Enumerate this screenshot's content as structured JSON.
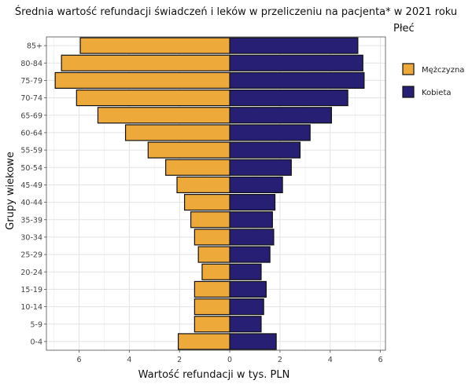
{
  "chart_data": {
    "type": "bar",
    "orientation": "horizontal",
    "layout": "population-pyramid",
    "title": "Średnia wartość refundacji świadczeń i leków w przeliczeniu na pacjenta* w 2021 roku",
    "xlabel": "Wartość refundacji w tys. PLN",
    "ylabel": "Grupy wiekowe",
    "legend_title": "Płeć",
    "legend_position": "right",
    "grid": true,
    "xlim": [
      -7.3,
      6.2
    ],
    "x_tick_values": [
      -6,
      -4,
      -2,
      0,
      2,
      4,
      6
    ],
    "x_tick_labels": [
      "6",
      "4",
      "2",
      "0",
      "2",
      "4",
      "6"
    ],
    "categories": [
      "0-4",
      "5-9",
      "10-14",
      "15-19",
      "20-24",
      "25-29",
      "30-34",
      "35-39",
      "40-44",
      "45-49",
      "50-54",
      "55-59",
      "60-64",
      "65-69",
      "70-74",
      "75-79",
      "80-84",
      "85+"
    ],
    "series": [
      {
        "name": "Mężczyzna",
        "color": "#EEA93B",
        "side": "left",
        "values": [
          2.05,
          1.4,
          1.4,
          1.4,
          1.1,
          1.25,
          1.4,
          1.55,
          1.8,
          2.1,
          2.55,
          3.25,
          4.15,
          5.25,
          6.1,
          6.95,
          6.7,
          5.95
        ]
      },
      {
        "name": "Kobieta",
        "color": "#261F73",
        "side": "right",
        "values": [
          1.85,
          1.25,
          1.35,
          1.45,
          1.25,
          1.6,
          1.75,
          1.7,
          1.8,
          2.1,
          2.45,
          2.8,
          3.2,
          4.05,
          4.7,
          5.35,
          5.3,
          5.1
        ]
      }
    ]
  }
}
